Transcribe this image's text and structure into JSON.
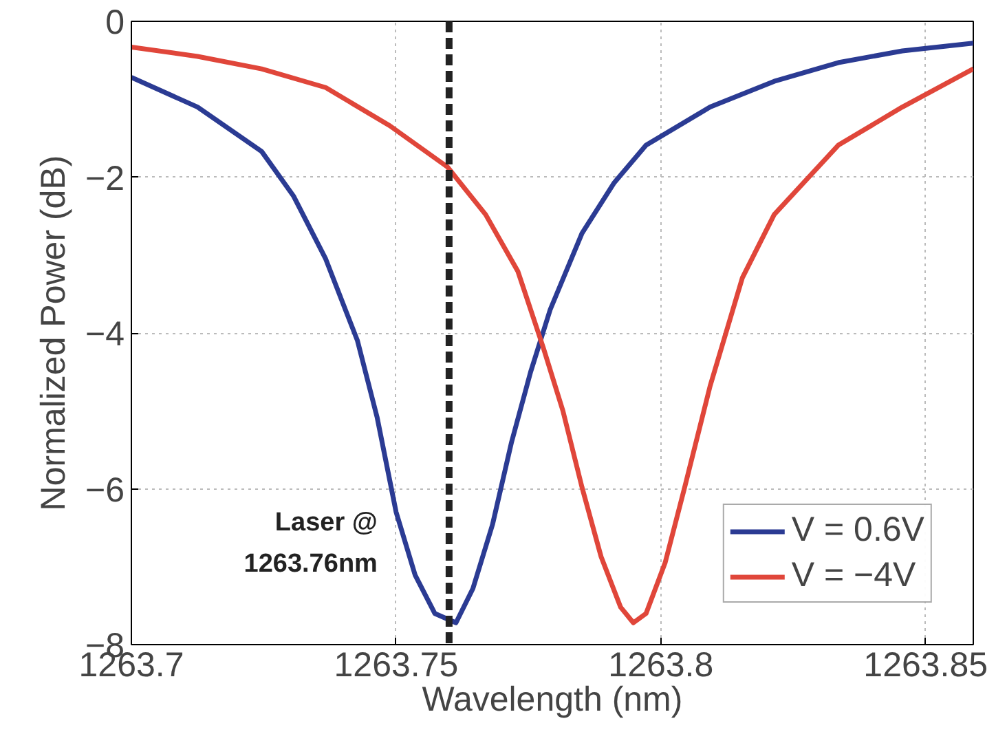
{
  "chart_data": {
    "type": "line",
    "xlabel": "Wavelength (nm)",
    "ylabel": "Normalized Power (dB)",
    "xlim": [
      1263.7,
      1263.859
    ],
    "xticks": [
      1263.7,
      1263.75,
      1263.8,
      1263.85
    ],
    "ylim": [
      -8,
      0
    ],
    "yticks": [
      {
        "value": 0,
        "label": "0"
      },
      {
        "value": -2,
        "label": "−2"
      },
      {
        "value": -4,
        "label": "−4"
      },
      {
        "value": -6,
        "label": "−6"
      },
      {
        "value": -8,
        "label": "−8"
      }
    ],
    "grid": true,
    "legend": "bottom right",
    "line_style": "solid",
    "marker": "none",
    "ref_lines": [
      {
        "axis": "x",
        "value": 1263.76,
        "label": "Laser @\n1263.76nm",
        "color": "#222222",
        "line_style": "dashed"
      }
    ],
    "series": [
      {
        "name": "V = 0.6V",
        "color": "#2b3b93",
        "x": [
          1263.7,
          1263.7125,
          1263.7246,
          1263.7306,
          1263.7367,
          1263.7427,
          1263.7464,
          1263.75,
          1263.7536,
          1263.7573,
          1263.7613,
          1263.7645,
          1263.7682,
          1263.7718,
          1263.7754,
          1263.7791,
          1263.7851,
          1263.7912,
          1263.7972,
          1263.8093,
          1263.8214,
          1263.8335,
          1263.8456,
          1263.859
        ],
        "values": [
          -0.72,
          -1.1,
          -1.67,
          -2.24,
          -3.05,
          -4.1,
          -5.08,
          -6.3,
          -7.11,
          -7.6,
          -7.72,
          -7.28,
          -6.46,
          -5.4,
          -4.5,
          -3.7,
          -2.72,
          -2.07,
          -1.59,
          -1.1,
          -0.77,
          -0.53,
          -0.38,
          -0.28
        ]
      },
      {
        "name": "V = −4V",
        "color": "#e0463a",
        "x": [
          1263.7,
          1263.7125,
          1263.7246,
          1263.7367,
          1263.7488,
          1263.7597,
          1263.7669,
          1263.773,
          1263.7778,
          1263.7815,
          1263.7851,
          1263.7887,
          1263.7924,
          1263.7948,
          1263.7972,
          1263.8008,
          1263.8045,
          1263.8093,
          1263.8154,
          1263.8214,
          1263.8335,
          1263.8456,
          1263.859
        ],
        "values": [
          -0.33,
          -0.45,
          -0.61,
          -0.85,
          -1.34,
          -1.87,
          -2.48,
          -3.21,
          -4.19,
          -5.0,
          -5.98,
          -6.87,
          -7.52,
          -7.72,
          -7.6,
          -6.95,
          -5.98,
          -4.68,
          -3.29,
          -2.48,
          -1.59,
          -1.1,
          -0.61
        ]
      }
    ]
  }
}
